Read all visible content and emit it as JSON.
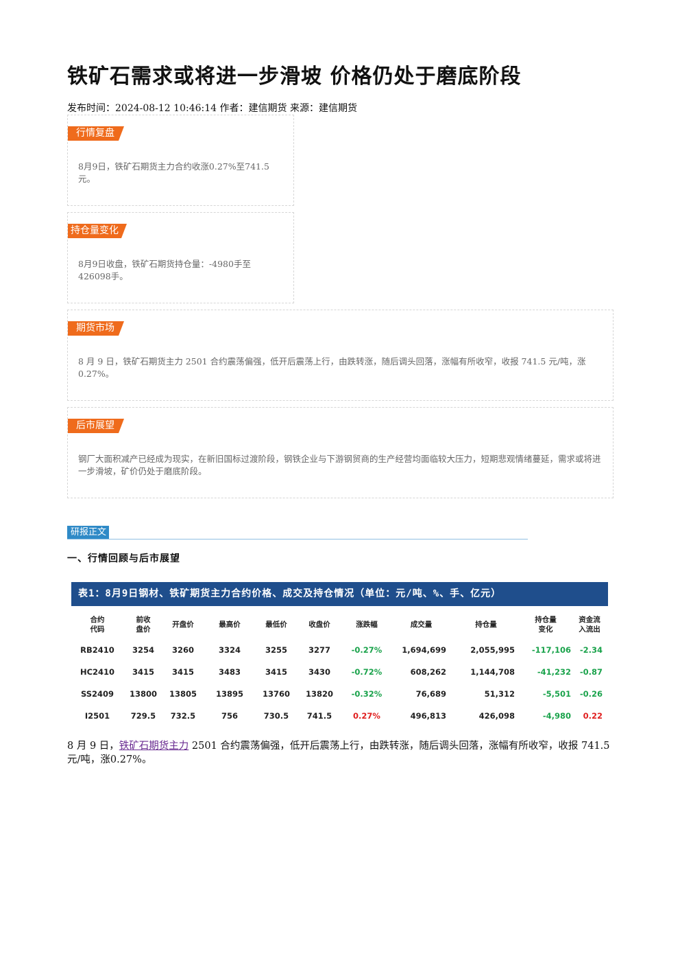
{
  "article": {
    "title": "铁矿石需求或将进一步滑坡 价格仍处于磨底阶段",
    "meta": "发布时间：2024-08-12 10:46:14 作者：建信期货 来源：建信期货"
  },
  "boxes": {
    "review": {
      "tag": "行情复盘",
      "text": "8月9日，铁矿石期货主力合约收涨0.27%至741.5元。"
    },
    "oi": {
      "tag": "持仓量变化",
      "text": "8月9日收盘，铁矿石期货持仓量：-4980手至426098手。"
    },
    "futures": {
      "tag": "期货市场",
      "text": "8 月 9 日，铁矿石期货主力 2501 合约震荡偏强，低开后震荡上行，由跌转涨，随后调头回落，涨幅有所收窄，收报 741.5 元/吨，涨0.27%。"
    },
    "outlook": {
      "tag": "后市展望",
      "text": "钢厂大面积减产已经成为现实，在新旧国标过渡阶段，钢铁企业与下游钢贸商的生产经营均面临较大压力，短期悲观情绪蔓延，需求或将进一步滑坡，矿价仍处于磨底阶段。"
    }
  },
  "section": {
    "tab": "研报正文",
    "heading": "一、行情回顾与后市展望"
  },
  "table": {
    "title": "表1：8月9日钢材、铁矿期货主力合约价格、成交及持仓情况（单位：元/吨、%、手、亿元）",
    "headers": {
      "code": [
        "合约",
        "代码"
      ],
      "prev": [
        "前收",
        "盘价"
      ],
      "open": "开盘价",
      "high": "最高价",
      "low": "最低价",
      "close": "收盘价",
      "chg": "涨跌幅",
      "vol": "成交量",
      "oi": "持仓量",
      "oichg": [
        "持仓量",
        "变化"
      ],
      "flow": [
        "资金流",
        "入流出"
      ]
    },
    "rows": [
      {
        "code": "RB2410",
        "prev": "3254",
        "open": "3260",
        "high": "3324",
        "low": "3255",
        "close": "3277",
        "chg": "-0.27%",
        "vol": "1,694,699",
        "oi": "2,055,995",
        "oichg": "-117,106",
        "flow": "-2.34"
      },
      {
        "code": "HC2410",
        "prev": "3415",
        "open": "3415",
        "high": "3483",
        "low": "3415",
        "close": "3430",
        "chg": "-0.72%",
        "vol": "608,262",
        "oi": "1,144,708",
        "oichg": "-41,232",
        "flow": "-0.87"
      },
      {
        "code": "SS2409",
        "prev": "13800",
        "open": "13805",
        "high": "13895",
        "low": "13760",
        "close": "13820",
        "chg": "-0.32%",
        "vol": "76,689",
        "oi": "51,312",
        "oichg": "-5,501",
        "flow": "-0.26"
      },
      {
        "code": "I2501",
        "prev": "729.5",
        "open": "732.5",
        "high": "756",
        "low": "730.5",
        "close": "741.5",
        "chg": "0.27%",
        "vol": "496,813",
        "oi": "426,098",
        "oichg": "-4,980",
        "flow": "0.22"
      }
    ]
  },
  "body": {
    "prefix": "8 月 9 日，",
    "link": "铁矿石期货主力",
    "suffix": " 2501 合约震荡偏强，低开后震荡上行，由跌转涨，随后调头回落，涨幅有所收窄，收报 741.5 元/吨，涨0.27%。"
  },
  "colors": {
    "tag": "#ef6b1c",
    "table_header": "#1f4e8c",
    "section_tab": "#2f8ac7",
    "down": "#1ba34c",
    "up": "#e02020"
  }
}
